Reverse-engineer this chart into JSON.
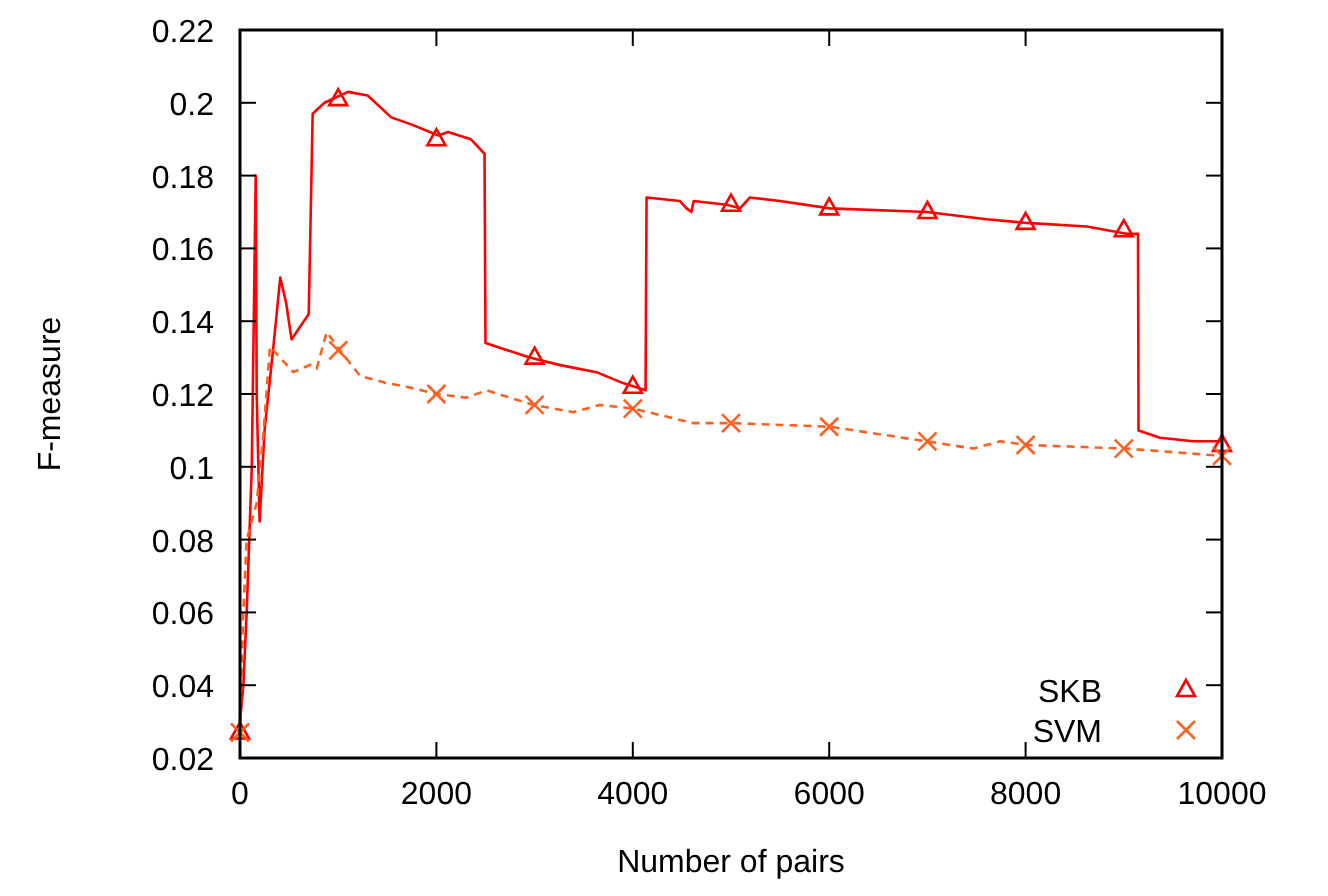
{
  "chart_data": {
    "type": "line",
    "xlabel": "Number of pairs",
    "ylabel": "F-measure",
    "xlim": [
      0,
      10000
    ],
    "xticks": [
      0,
      2000,
      4000,
      6000,
      8000,
      10000
    ],
    "ylim": [
      0.02,
      0.22
    ],
    "yticks": [
      0.02,
      0.04,
      0.06,
      0.08,
      0.1,
      0.12,
      0.14,
      0.16,
      0.18,
      0.2,
      0.22
    ],
    "legend": "bottom right",
    "grid": false,
    "series": [
      {
        "color": "#ff0000",
        "line_style": "solid",
        "marker": "none",
        "x": [
          0,
          34,
          68,
          120,
          160,
          170,
          200,
          250,
          340,
          410,
          470,
          525,
          600,
          700,
          740,
          860,
          1100,
          1300,
          1540,
          1750,
          2020,
          2120,
          2350,
          2490,
          2500,
          2950,
          3250,
          3630,
          3900,
          4130,
          4140,
          4480,
          4548,
          4596,
          4620,
          4955,
          5092,
          5193,
          5499,
          6008,
          6992,
          7603,
          8011,
          8622,
          9029,
          9145,
          9150,
          9369,
          9708,
          10000
        ],
        "values": [
          0.03,
          0.04,
          0.06,
          0.1,
          0.18,
          0.12,
          0.085,
          0.11,
          0.133,
          0.152,
          0.145,
          0.135,
          0.138,
          0.142,
          0.197,
          0.2,
          0.203,
          0.202,
          0.196,
          0.194,
          0.191,
          0.192,
          0.19,
          0.186,
          0.134,
          0.13,
          0.128,
          0.126,
          0.123,
          0.121,
          0.174,
          0.173,
          0.171,
          0.17,
          0.173,
          0.172,
          0.171,
          0.174,
          0.173,
          0.171,
          0.17,
          0.168,
          0.167,
          0.166,
          0.164,
          0.164,
          0.11,
          0.108,
          0.107,
          0.107
        ]
      },
      {
        "color": "#ff6020",
        "line_style": "dashed",
        "marker": "none",
        "x": [
          0,
          34,
          68,
          170,
          238,
          305,
          407,
          543,
          713,
          781,
          883,
          1018,
          1222,
          1493,
          1697,
          2002,
          2308,
          2511,
          2987,
          3394,
          3666,
          4004,
          4617,
          5024,
          6008,
          6992,
          7468,
          7739,
          8011,
          9029,
          10000
        ],
        "values": [
          0.027,
          0.06,
          0.08,
          0.09,
          0.109,
          0.133,
          0.13,
          0.126,
          0.128,
          0.127,
          0.137,
          0.132,
          0.125,
          0.123,
          0.122,
          0.12,
          0.119,
          0.121,
          0.117,
          0.115,
          0.117,
          0.116,
          0.112,
          0.112,
          0.111,
          0.107,
          0.105,
          0.107,
          0.106,
          0.105,
          0.103
        ]
      },
      {
        "type": "scatter",
        "name": "SKB",
        "color": "#ff0000",
        "marker": "triangle",
        "x": [
          0,
          1000,
          2000,
          3000,
          4000,
          5000,
          6000,
          7000,
          8000,
          9000,
          10000
        ],
        "values": [
          0.027,
          0.201,
          0.19,
          0.13,
          0.122,
          0.172,
          0.171,
          0.17,
          0.167,
          0.165,
          0.106
        ]
      },
      {
        "type": "scatter",
        "name": "SVM",
        "color": "#ff6020",
        "marker": "cross",
        "x": [
          0,
          1000,
          2000,
          3000,
          4000,
          5000,
          6000,
          7000,
          8000,
          9000,
          10000
        ],
        "values": [
          0.027,
          0.132,
          0.12,
          0.117,
          0.116,
          0.112,
          0.111,
          0.107,
          0.106,
          0.105,
          0.103
        ]
      }
    ]
  }
}
